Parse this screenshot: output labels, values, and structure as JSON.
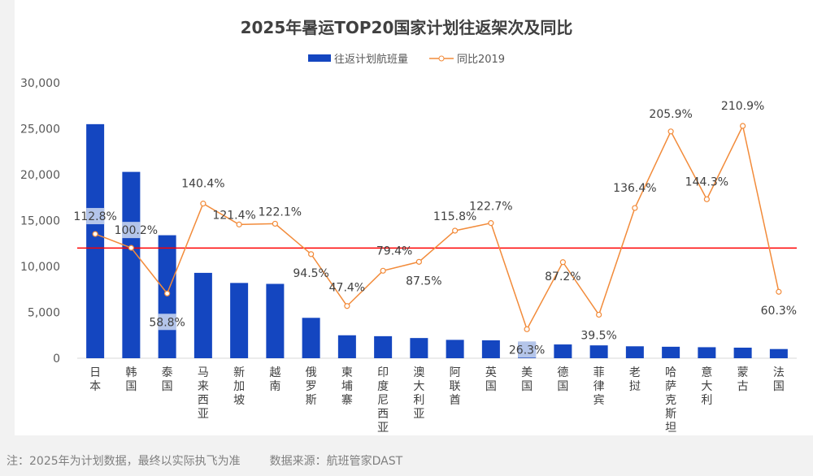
{
  "chart_data": {
    "type": "bar+line",
    "title": "2025年暑运TOP20国家计划往返架次及同比",
    "categories": [
      "日本",
      "韩国",
      "泰国",
      "马来西亚",
      "新加坡",
      "越南",
      "俄罗斯",
      "柬埔寨",
      "印度尼西亚",
      "澳大利亚",
      "阿联酋",
      "英国",
      "美国",
      "德国",
      "菲律宾",
      "老挝",
      "哈萨克斯坦",
      "意大利",
      "蒙古",
      "法国"
    ],
    "series": [
      {
        "name": "往返计划航班量",
        "type": "bar",
        "axis": "left",
        "values": [
          25500,
          20300,
          13400,
          9300,
          8200,
          8100,
          4400,
          2500,
          2400,
          2200,
          2000,
          1950,
          1700,
          1500,
          1400,
          1300,
          1250,
          1200,
          1150,
          1000
        ]
      },
      {
        "name": "同比2019",
        "type": "line",
        "axis": "right",
        "values": [
          112.8,
          100.2,
          58.8,
          140.4,
          121.4,
          122.1,
          94.5,
          47.4,
          79.4,
          87.5,
          115.8,
          122.7,
          26.3,
          87.2,
          39.5,
          136.4,
          205.9,
          144.3,
          210.9,
          60.3
        ],
        "labels": [
          "112.8%",
          "100.2%",
          "58.8%",
          "140.4%",
          "121.4%",
          "122.1%",
          "94.5%",
          "47.4%",
          "79.4%",
          "87.5%",
          "115.8%",
          "122.7%",
          "26.3%",
          "87.2%",
          "39.5%",
          "136.4%",
          "205.9%",
          "144.3%",
          "210.9%",
          "60.3%"
        ]
      }
    ],
    "reference_line": {
      "value_percent": 100,
      "color": "#ff0000"
    },
    "ylim": [
      0,
      30000
    ],
    "y2lim": [
      0,
      250
    ],
    "yticks": [
      "0",
      "5,000",
      "10,000",
      "15,000",
      "20,000",
      "25,000",
      "30,000"
    ],
    "grid": false,
    "legend": "top",
    "colors": {
      "bar": "#1446c0",
      "line": "#f28b3a"
    }
  },
  "footer": {
    "note": "注：2025年为计划数据，最终以实际执飞为准",
    "source": "数据来源：航班管家DAST"
  }
}
